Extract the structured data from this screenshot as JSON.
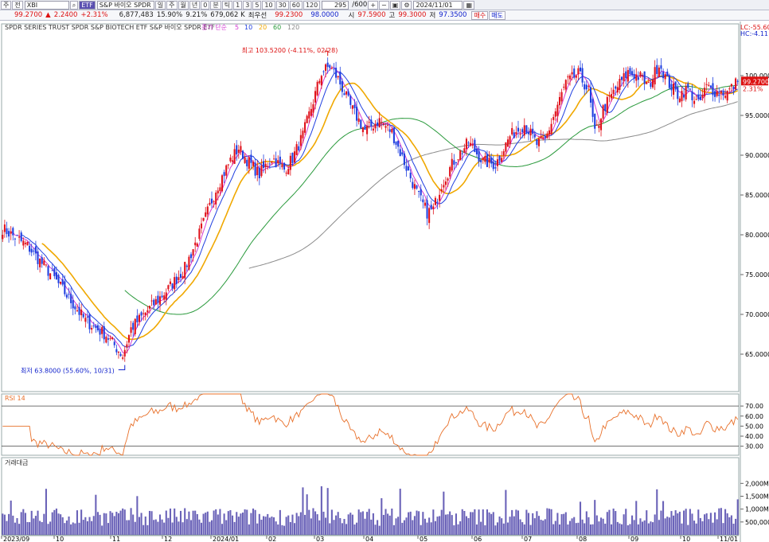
{
  "toolbar": {
    "mode_label": "주",
    "market_label": "전",
    "symbol_code": "XBI",
    "badge_etf": "ETF",
    "symbol_name": "S&P 바이오 SPDR",
    "period_buttons": [
      "일",
      "주",
      "월",
      "년",
      "0",
      "분",
      "틱"
    ],
    "minute_buttons": [
      "1",
      "3",
      "5",
      "10",
      "30",
      "60",
      "120"
    ],
    "count_value": "295",
    "count_total": "/600",
    "date_value": "2024/11/01"
  },
  "quote": {
    "price": "99.2700",
    "arrow": "▲",
    "change": "2.2400",
    "change_pct": "+2.31%",
    "volume": "6,877,483",
    "vol_ratio": "15.90%",
    "turnover_pct": "9.21%",
    "amount": "679,062 K",
    "best_ask_label": "최우선",
    "best_ask": "99.2300",
    "best_bid": "98.0000",
    "open_label": "시",
    "open": "97.5900",
    "high_label": "고",
    "high": "99.3000",
    "low_label": "저",
    "low": "97.3500",
    "buy_label": "매수",
    "sell_label": "매도"
  },
  "colors": {
    "up": "#e0101a",
    "down": "#1f3fe0",
    "ma5": "#d43cd4",
    "ma10": "#1f3fe0",
    "ma20": "#f0a800",
    "ma60": "#2a9a3c",
    "ma120": "#8a8a8a",
    "rsi": "#e8702a",
    "volume": "#6a62b8"
  },
  "chart_data": {
    "type": "candlestick",
    "title": "SPDR SERIES TRUST SPDR S&P BIOTECH ETF  S&P 바이오 SPDR ETF",
    "legend": {
      "prefix": "종가 단순",
      "ma": [
        "5",
        "10",
        "20",
        "60",
        "120"
      ]
    },
    "price_axis": {
      "ylim": [
        60.3,
        106.5
      ],
      "ticks": [
        "100.0000",
        "95.0000",
        "90.0000",
        "85.0000",
        "80.0000",
        "75.0000",
        "70.0000",
        "65.0000"
      ],
      "last": "99.2700",
      "last_pct": "2.31%"
    },
    "high_annotation": "최고 103.5200 (-4.11%, 02/28)",
    "low_annotation": "최저 63.8000 (55.60%, 10/31)",
    "lc_label": "LC:-55.60",
    "hc_label": "HC:-4.11",
    "x_ticks": [
      "2023/09",
      "10",
      "11",
      "12",
      "2024/01",
      "02",
      "03",
      "04",
      "05",
      "06",
      "07",
      "08",
      "09",
      "10",
      "11/01"
    ],
    "path": [
      [
        0,
        80.8
      ],
      [
        12,
        78.6
      ],
      [
        25,
        74.5
      ],
      [
        40,
        69.2
      ],
      [
        50,
        67.4
      ],
      [
        58,
        64.8
      ],
      [
        62,
        68.2
      ],
      [
        70,
        70.5
      ],
      [
        80,
        73.2
      ],
      [
        88,
        75.8
      ],
      [
        95,
        80.1
      ],
      [
        103,
        85.7
      ],
      [
        110,
        89.4
      ],
      [
        114,
        90.9
      ],
      [
        118,
        89.4
      ],
      [
        124,
        87.6
      ],
      [
        130,
        89.7
      ],
      [
        136,
        88.2
      ],
      [
        140,
        89.6
      ],
      [
        145,
        92.5
      ],
      [
        150,
        96.8
      ],
      [
        154,
        100.4
      ],
      [
        158,
        101.2
      ],
      [
        162,
        99.6
      ],
      [
        168,
        96.1
      ],
      [
        175,
        93.1
      ],
      [
        182,
        94.4
      ],
      [
        188,
        92.9
      ],
      [
        194,
        89.1
      ],
      [
        200,
        85.3
      ],
      [
        205,
        82.8
      ],
      [
        208,
        83.2
      ],
      [
        212,
        86.4
      ],
      [
        218,
        89.3
      ],
      [
        225,
        91.6
      ],
      [
        232,
        89.2
      ],
      [
        238,
        88.8
      ],
      [
        245,
        92.4
      ],
      [
        252,
        93.9
      ],
      [
        258,
        91.4
      ],
      [
        262,
        91.9
      ],
      [
        266,
        94.8
      ],
      [
        272,
        99.1
      ],
      [
        278,
        100.2
      ],
      [
        283,
        98.1
      ],
      [
        286,
        92.6
      ],
      [
        290,
        95.8
      ],
      [
        296,
        98.3
      ],
      [
        302,
        100.4
      ],
      [
        308,
        99.8
      ],
      [
        312,
        98.6
      ],
      [
        317,
        101.6
      ],
      [
        321,
        99.3
      ],
      [
        326,
        97.6
      ],
      [
        331,
        98.3
      ],
      [
        336,
        96.3
      ],
      [
        340,
        98.6
      ],
      [
        345,
        97.9
      ],
      [
        350,
        97.9
      ],
      [
        355,
        99.27
      ]
    ],
    "rsi": {
      "label": "RSI 14",
      "ylim": [
        21,
        82
      ],
      "ticks": [
        "70.00",
        "60.00",
        "50.00",
        "40.00",
        "30.00"
      ],
      "levels": [
        70,
        30
      ]
    },
    "volume": {
      "label": "거래대금",
      "ylim": [
        0,
        3000
      ],
      "ticks": [
        "2,000M",
        "1,500M",
        "1,000M",
        "500,000K"
      ]
    }
  }
}
